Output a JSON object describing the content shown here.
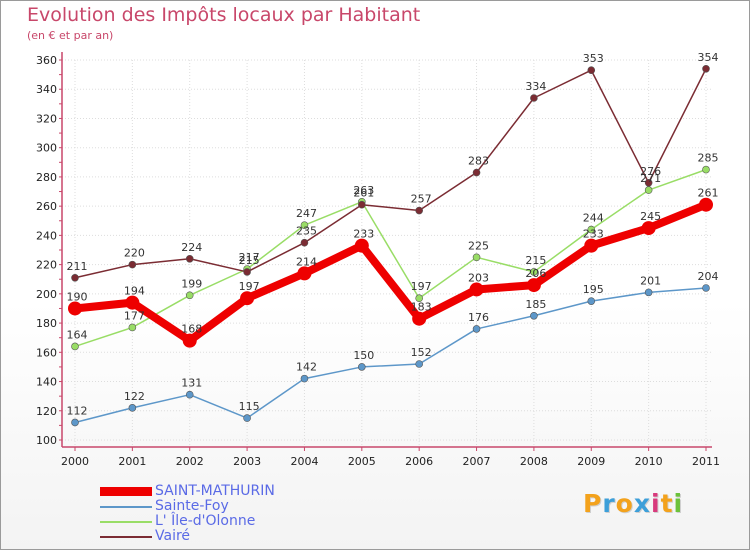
{
  "title": "Evolution des Impôts locaux par Habitant",
  "subtitle": "(en € et par an)",
  "logo": {
    "letters": [
      "P",
      "r",
      "o",
      "x",
      "i",
      "t",
      "i"
    ],
    "colors": [
      "#f3a21c",
      "#3d9fd9",
      "#f3a21c",
      "#3d9fd9",
      "#d83a7c",
      "#f3a21c",
      "#6cc23a"
    ]
  },
  "chart_data": {
    "type": "line",
    "x": [
      "2000",
      "2001",
      "2002",
      "2003",
      "2004",
      "2005",
      "2006",
      "2007",
      "2008",
      "2009",
      "2010",
      "2011"
    ],
    "ylim": [
      100,
      360
    ],
    "yticks": [
      100,
      120,
      140,
      160,
      180,
      200,
      220,
      240,
      260,
      280,
      300,
      320,
      340,
      360
    ],
    "grid": true,
    "series": [
      {
        "name": "SAINT-MATHURIN",
        "color": "#ee0000",
        "values": [
          190,
          194,
          168,
          197,
          214,
          233,
          183,
          203,
          206,
          233,
          245,
          261
        ]
      },
      {
        "name": "Sainte-Foy",
        "color": "#5d97c9",
        "values": [
          112,
          122,
          131,
          115,
          142,
          150,
          152,
          176,
          185,
          195,
          201,
          204
        ]
      },
      {
        "name": "L' Île-d'Olonne",
        "color": "#99dd66",
        "values": [
          164,
          177,
          199,
          217,
          247,
          263,
          197,
          225,
          215,
          244,
          271,
          285
        ]
      },
      {
        "name": "Vairé",
        "color": "#7b2c33",
        "values": [
          211,
          220,
          224,
          215,
          235,
          261,
          257,
          283,
          334,
          353,
          276,
          354
        ]
      }
    ],
    "legend_position": "bottom-left"
  }
}
